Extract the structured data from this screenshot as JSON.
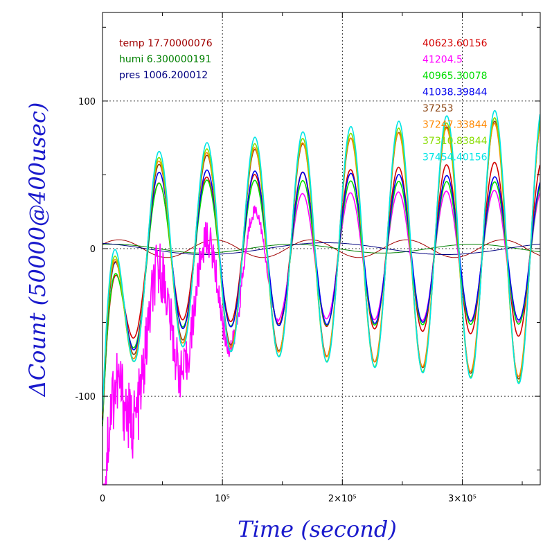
{
  "chart_data": {
    "type": "line",
    "xlabel": "Time (second)",
    "ylabel": "ΔCount (50000@400usec)",
    "xlim": [
      0,
      365000
    ],
    "ylim": [
      -160,
      160
    ],
    "x_ticks": [
      {
        "value": 0,
        "label": "0"
      },
      {
        "value": 100000,
        "label": "10⁵"
      },
      {
        "value": 200000,
        "label": "2×10⁵"
      },
      {
        "value": 300000,
        "label": "3×10⁵"
      }
    ],
    "y_ticks": [
      {
        "value": 100,
        "label": "100"
      },
      {
        "value": 0,
        "label": "0"
      },
      {
        "value": -100,
        "label": "-100"
      }
    ],
    "grid": true,
    "env_legend": [
      {
        "text": "temp 17.70000076",
        "color": "#a00000"
      },
      {
        "text": "humi 6.300000191",
        "color": "#008000"
      },
      {
        "text": "pres 1006.200012",
        "color": "#000080"
      }
    ],
    "series": [
      {
        "name": "40623.60156",
        "color": "#d40000",
        "offset": 0,
        "amp_start": 45,
        "amp_end": 60,
        "phase": 0.02
      },
      {
        "name": "41204.5",
        "color": "#ff00ff",
        "offset": -5,
        "amp_start": 40,
        "amp_end": 45,
        "phase": 0.04
      },
      {
        "name": "40965.30078",
        "color": "#00dd00",
        "offset": -3,
        "amp_start": 50,
        "amp_end": 48,
        "phase": 0.0
      },
      {
        "name": "41038.39844",
        "color": "#0000ee",
        "offset": 0,
        "amp_start": 55,
        "amp_end": 48,
        "phase": -0.02
      },
      {
        "name": "37253",
        "color": "#8b4513",
        "offset": 0,
        "amp_start": 55,
        "amp_end": 90,
        "phase": 0.0
      },
      {
        "name": "37247.33844",
        "color": "#ff8800",
        "offset": 0,
        "amp_start": 58,
        "amp_end": 88,
        "phase": 0.03
      },
      {
        "name": "37310.83844",
        "color": "#88dd00",
        "offset": 0,
        "amp_start": 60,
        "amp_end": 92,
        "phase": 0.01
      },
      {
        "name": "37454.40156",
        "color": "#00e5e5",
        "offset": 2,
        "amp_start": 62,
        "amp_end": 95,
        "phase": -0.01
      }
    ],
    "oscillation_period_s": 40000
  }
}
